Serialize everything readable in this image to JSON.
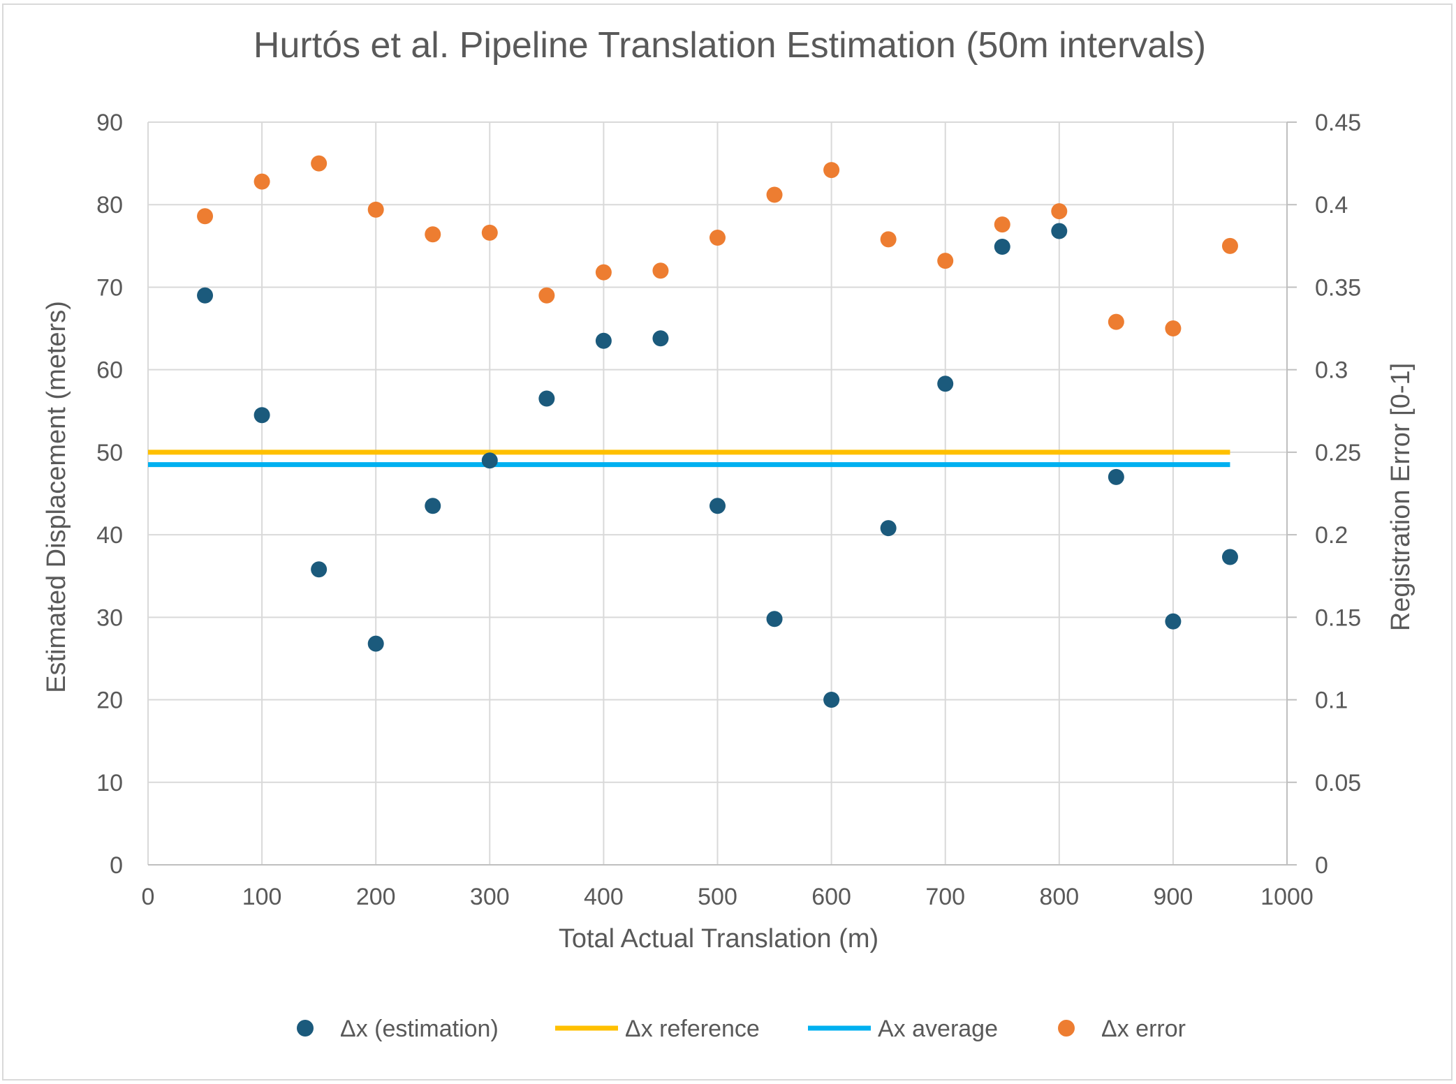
{
  "chart_data": {
    "type": "scatter",
    "title": "Hurtós et al. Pipeline Translation Estimation (50m intervals)",
    "xlabel": "Total Actual Translation (m)",
    "ylabel": "Estimated Displacement (meters)",
    "y2label": "Registration Error [0-1]",
    "xlim": [
      0,
      1000
    ],
    "ylim": [
      0,
      90
    ],
    "y2lim": [
      0,
      0.45
    ],
    "x_ticks": [
      "0",
      "100",
      "200",
      "300",
      "400",
      "500",
      "600",
      "700",
      "800",
      "900",
      "1000"
    ],
    "y_ticks": [
      "0",
      "10",
      "20",
      "30",
      "40",
      "50",
      "60",
      "70",
      "80",
      "90"
    ],
    "y2_ticks": [
      "0",
      "0.05",
      "0.1",
      "0.15",
      "0.2",
      "0.25",
      "0.3",
      "0.35",
      "0.4",
      "0.45"
    ],
    "grid": true,
    "legend_position": "bottom",
    "series": [
      {
        "name": "Δx (estimation)",
        "kind": "scatter",
        "axis": "left",
        "color": "#1b5a7c",
        "x": [
          50,
          100,
          150,
          200,
          250,
          300,
          350,
          400,
          450,
          500,
          550,
          600,
          650,
          700,
          750,
          800,
          850,
          900,
          950
        ],
        "y": [
          69,
          54.5,
          35.8,
          26.8,
          43.5,
          49,
          56.5,
          63.5,
          63.8,
          43.5,
          29.8,
          20,
          40.8,
          58.3,
          74.9,
          76.8,
          47,
          29.5,
          37.3
        ]
      },
      {
        "name": "Δx reference",
        "kind": "line",
        "axis": "left",
        "color": "#ffc000",
        "x": [
          0,
          950
        ],
        "y": [
          50,
          50
        ]
      },
      {
        "name": "Ax average",
        "kind": "line",
        "axis": "left",
        "color": "#00b0f0",
        "x": [
          0,
          950
        ],
        "y": [
          48.5,
          48.5
        ]
      },
      {
        "name": "Δx error",
        "kind": "scatter",
        "axis": "right",
        "color": "#ed7d31",
        "x": [
          50,
          100,
          150,
          200,
          250,
          300,
          350,
          400,
          450,
          500,
          550,
          600,
          650,
          700,
          750,
          800,
          850,
          900,
          950
        ],
        "y": [
          0.393,
          0.414,
          0.425,
          0.397,
          0.382,
          0.383,
          0.345,
          0.359,
          0.36,
          0.38,
          0.406,
          0.421,
          0.379,
          0.366,
          0.388,
          0.396,
          0.329,
          0.325,
          0.375
        ]
      }
    ]
  }
}
